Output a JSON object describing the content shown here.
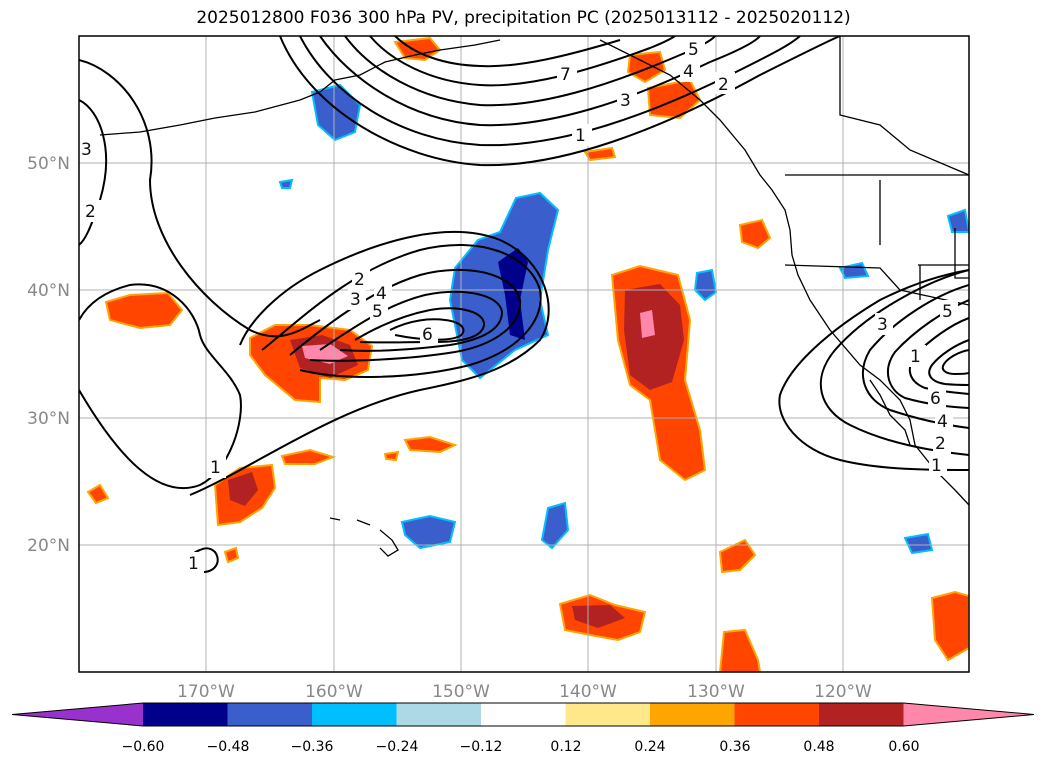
{
  "title": "2025012800 F036 300 hPa PV, precipitation PC (2025013112 - 2025020112)",
  "axes": {
    "lon_labels": [
      "170°W",
      "160°W",
      "150°W",
      "140°W",
      "130°W",
      "120°W"
    ],
    "lat_labels": [
      "50°N",
      "40°N",
      "30°N",
      "20°N"
    ]
  },
  "colorbar": {
    "ticks": [
      "−0.60",
      "−0.48",
      "−0.36",
      "−0.24",
      "−0.12",
      "0.12",
      "0.24",
      "0.36",
      "0.48",
      "0.60"
    ],
    "colors": [
      "#9932cc",
      "#00008b",
      "#3a5fcd",
      "#00bfff",
      "#add8e6",
      "#ffffff",
      "#ffe88a",
      "#ffa500",
      "#ff4500",
      "#b22222",
      "#ff88aa"
    ]
  },
  "contour_labels": [
    "7",
    "5",
    "4",
    "3",
    "2",
    "1",
    "3",
    "2",
    "2",
    "3",
    "4",
    "5",
    "6",
    "1",
    "1",
    "3",
    "5",
    "1",
    "6",
    "4",
    "2",
    "1"
  ]
}
